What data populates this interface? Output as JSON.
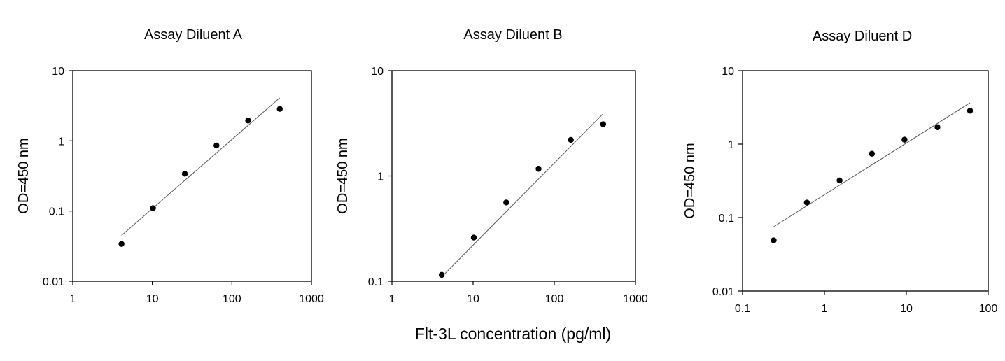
{
  "shared_xlabel": "Flt-3L concentration (pg/ml)",
  "chart_data": [
    {
      "type": "scatter",
      "title": "Assay Diluent A",
      "ylabel": "OD=450 nm",
      "xlabel": "",
      "xscale": "log",
      "yscale": "log",
      "xlim": [
        1,
        1000
      ],
      "ylim": [
        0.01,
        10
      ],
      "xticks": [
        1,
        10,
        100,
        1000
      ],
      "xtick_labels": [
        "1",
        "10",
        "100",
        "1000"
      ],
      "yticks": [
        0.01,
        0.1,
        1,
        10
      ],
      "ytick_labels": [
        "0.01",
        "0.1",
        "1",
        "10"
      ],
      "x": [
        4.1,
        10.2,
        25.6,
        64,
        160,
        400
      ],
      "y": [
        0.034,
        0.11,
        0.34,
        0.86,
        1.95,
        2.85
      ],
      "fit_line": {
        "x": [
          4.1,
          400
        ],
        "y": [
          0.045,
          4.1
        ]
      },
      "grid": false
    },
    {
      "type": "scatter",
      "title": "Assay Diluent B",
      "ylabel": "OD=450 nm",
      "xlabel": "",
      "xscale": "log",
      "yscale": "log",
      "xlim": [
        1,
        1000
      ],
      "ylim": [
        0.1,
        10
      ],
      "xticks": [
        1,
        10,
        100,
        1000
      ],
      "xtick_labels": [
        "1",
        "10",
        "100",
        "1000"
      ],
      "yticks": [
        0.1,
        1,
        10
      ],
      "ytick_labels": [
        "0.1",
        "1",
        "10"
      ],
      "x": [
        4.1,
        10.2,
        25.6,
        64,
        160,
        400
      ],
      "y": [
        0.115,
        0.26,
        0.56,
        1.17,
        2.2,
        3.1
      ],
      "fit_line": {
        "x": [
          4.1,
          400
        ],
        "y": [
          0.11,
          3.9
        ]
      },
      "grid": false
    },
    {
      "type": "scatter",
      "title": "Assay Diluent D",
      "ylabel": "OD=450 nm",
      "xlabel": "",
      "xscale": "log",
      "yscale": "log",
      "xlim": [
        0.1,
        100
      ],
      "ylim": [
        0.01,
        10
      ],
      "xticks": [
        0.1,
        1,
        10,
        100
      ],
      "xtick_labels": [
        "0.1",
        "1",
        "10",
        "100"
      ],
      "yticks": [
        0.01,
        0.1,
        1,
        10
      ],
      "ytick_labels": [
        "0.01",
        "0.1",
        "1",
        "10"
      ],
      "x": [
        0.24,
        0.61,
        1.53,
        3.8,
        9.5,
        24,
        60
      ],
      "y": [
        0.049,
        0.16,
        0.32,
        0.74,
        1.15,
        1.7,
        2.85
      ],
      "fit_line": {
        "x": [
          0.24,
          60
        ],
        "y": [
          0.075,
          3.65
        ]
      },
      "grid": false
    }
  ]
}
